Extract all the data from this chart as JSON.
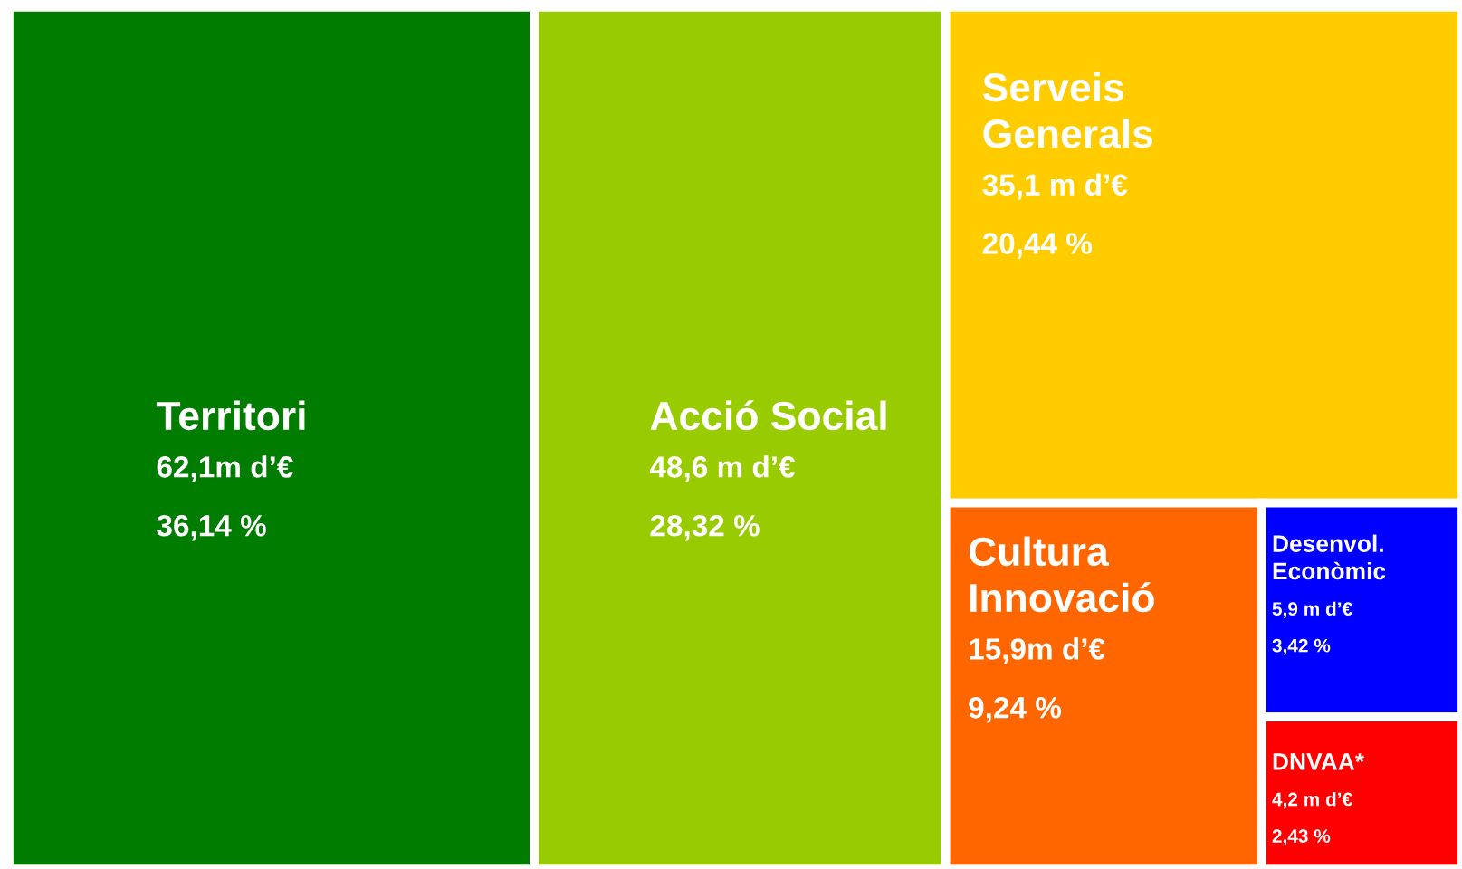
{
  "chart_data": {
    "type": "other",
    "categories": [
      "Territori",
      "Acció Social",
      "Serveis\nGenerals",
      "Cultura\nInnovació",
      "Desenvol.\nEconòmic",
      "DNVAA*"
    ],
    "values": [
      36.14,
      28.32,
      20.44,
      9.24,
      3.42,
      2.43
    ],
    "value_labels": [
      "62,1m d’€\n36,14 %",
      "48,6 m d’€\n28,32 %",
      "35,1 m d’€\n20,44 %",
      "15,9m d’€\n9,24 %",
      "5,9 m d’€\n3,42 %",
      "4,2 m d’€\n2,43 %"
    ],
    "colors": [
      "#007d00",
      "#99cc00",
      "#ffcc00",
      "#ff6600",
      "#0000ff",
      "#ff0000"
    ]
  }
}
